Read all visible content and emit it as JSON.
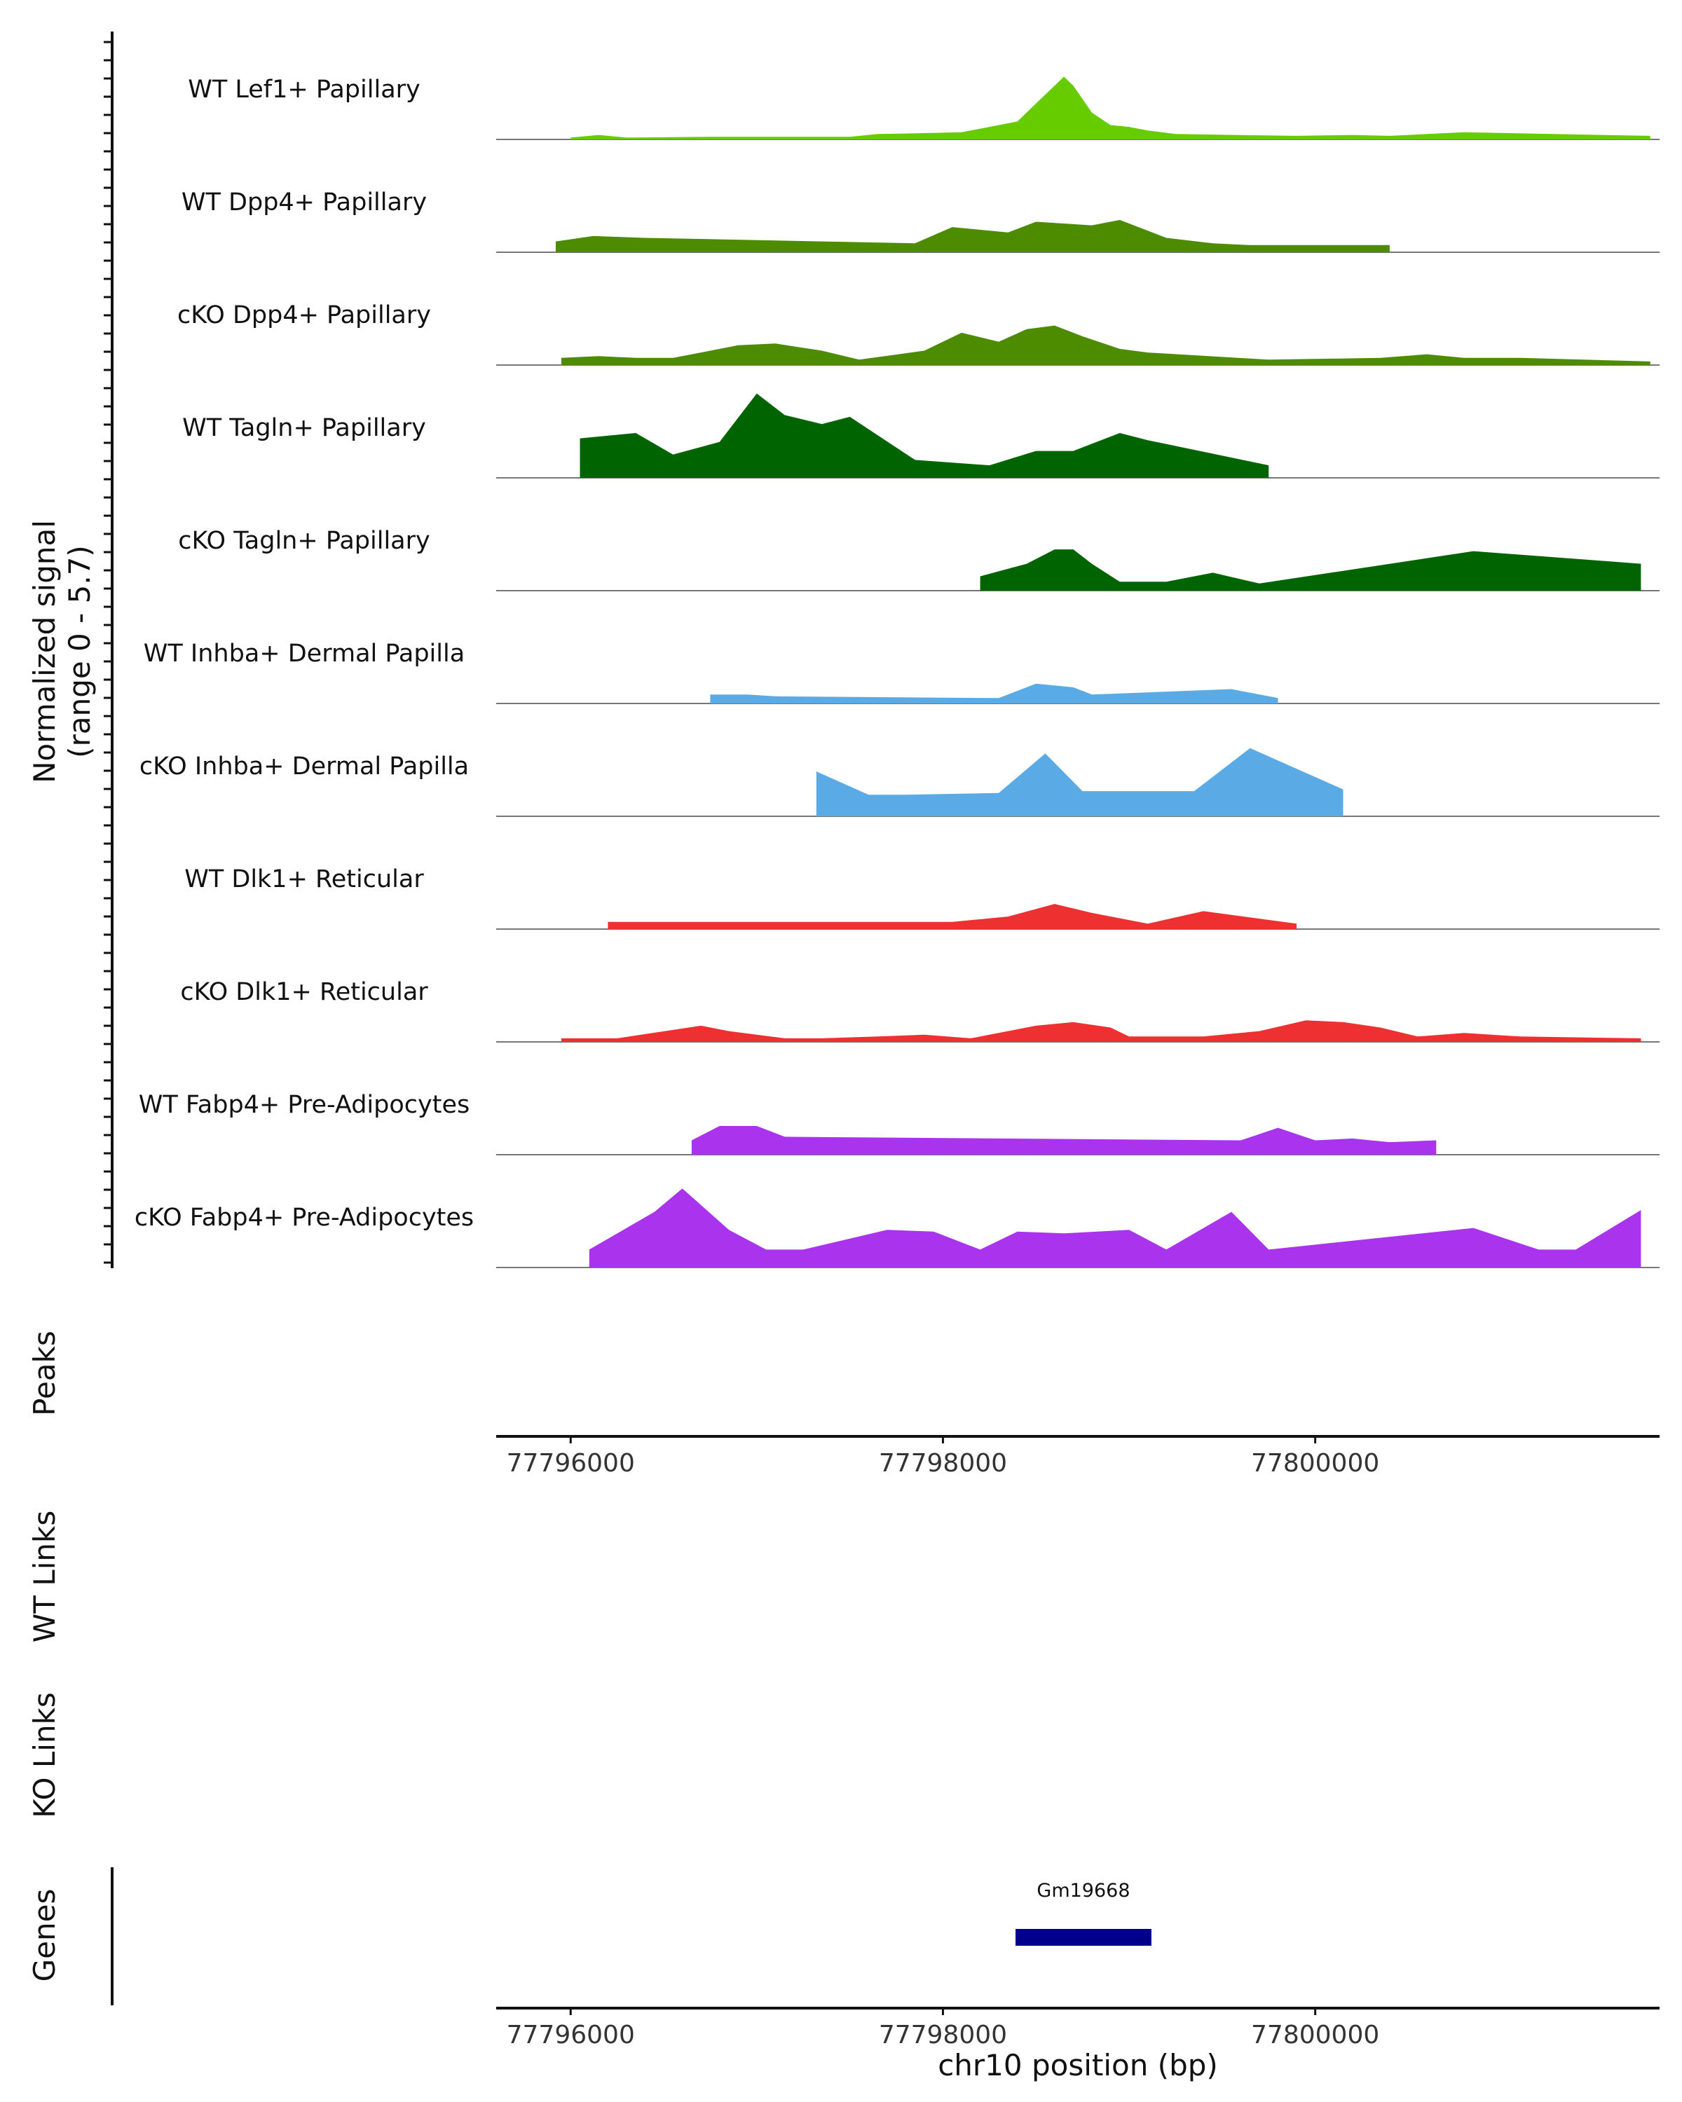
{
  "chart_data": {
    "type": "area",
    "title": "",
    "ylabel": "Normalized signal",
    "ylabel_range": "(range 0 - 5.7)",
    "xlabel": "chr10 position (bp)",
    "xlim": [
      77795600,
      77801850
    ],
    "ylim": [
      0,
      5.7
    ],
    "xticks": [
      77796000,
      77798000,
      77800000
    ],
    "xtick_labels": [
      "77796000",
      "77798000",
      "77800000"
    ],
    "panel_labels": {
      "peaks": "Peaks",
      "wt_links": "WT Links",
      "ko_links": "KO Links",
      "genes": "Genes"
    },
    "genes": [
      {
        "name": "Gm19668",
        "start": 77798390,
        "end": 77799120,
        "color": "#00008B"
      }
    ],
    "tracks": [
      {
        "name": "WT Lef1+ Papillary",
        "color": "#66CC00",
        "values": [
          [
            77796000,
            0.1
          ],
          [
            77796150,
            0.25
          ],
          [
            77796300,
            0.1
          ],
          [
            77796750,
            0.15
          ],
          [
            77797150,
            0.15
          ],
          [
            77797500,
            0.15
          ],
          [
            77797650,
            0.3
          ],
          [
            77797900,
            0.35
          ],
          [
            77798100,
            0.4
          ],
          [
            77798400,
            1.0
          ],
          [
            77798500,
            2.0
          ],
          [
            77798600,
            3.0
          ],
          [
            77798650,
            3.5
          ],
          [
            77798700,
            3.0
          ],
          [
            77798800,
            1.5
          ],
          [
            77798900,
            0.8
          ],
          [
            77799000,
            0.7
          ],
          [
            77799100,
            0.5
          ],
          [
            77799250,
            0.3
          ],
          [
            77799900,
            0.2
          ],
          [
            77800200,
            0.25
          ],
          [
            77800400,
            0.2
          ],
          [
            77800600,
            0.3
          ],
          [
            77800800,
            0.4
          ],
          [
            77801800,
            0.2
          ]
        ]
      },
      {
        "name": "WT Dpp4+ Papillary",
        "color": "#4D8C00",
        "values": [
          [
            77795920,
            0.6
          ],
          [
            77796120,
            0.9
          ],
          [
            77796400,
            0.8
          ],
          [
            77797850,
            0.5
          ],
          [
            77798050,
            1.4
          ],
          [
            77798350,
            1.1
          ],
          [
            77798500,
            1.7
          ],
          [
            77798650,
            1.6
          ],
          [
            77798800,
            1.5
          ],
          [
            77798950,
            1.8
          ],
          [
            77799200,
            0.8
          ],
          [
            77799450,
            0.5
          ],
          [
            77799650,
            0.4
          ],
          [
            77800150,
            0.4
          ],
          [
            77800400,
            0.4
          ]
        ]
      },
      {
        "name": "cKO Dpp4+ Papillary",
        "color": "#4D8C00",
        "values": [
          [
            77795950,
            0.4
          ],
          [
            77796150,
            0.5
          ],
          [
            77796350,
            0.4
          ],
          [
            77796550,
            0.4
          ],
          [
            77796900,
            1.1
          ],
          [
            77797100,
            1.2
          ],
          [
            77797350,
            0.8
          ],
          [
            77797550,
            0.3
          ],
          [
            77797900,
            0.8
          ],
          [
            77798100,
            1.8
          ],
          [
            77798300,
            1.3
          ],
          [
            77798450,
            2.0
          ],
          [
            77798600,
            2.2
          ],
          [
            77798750,
            1.6
          ],
          [
            77798950,
            0.9
          ],
          [
            77799100,
            0.7
          ],
          [
            77799750,
            0.3
          ],
          [
            77800350,
            0.4
          ],
          [
            77800600,
            0.6
          ],
          [
            77800800,
            0.4
          ],
          [
            77801100,
            0.4
          ],
          [
            77801800,
            0.2
          ]
        ]
      },
      {
        "name": "WT Tagln+ Papillary",
        "color": "#006400",
        "values": [
          [
            77796050,
            2.2
          ],
          [
            77796350,
            2.5
          ],
          [
            77796550,
            1.3
          ],
          [
            77796800,
            2.0
          ],
          [
            77797000,
            4.7
          ],
          [
            77797150,
            3.5
          ],
          [
            77797350,
            3.0
          ],
          [
            77797500,
            3.4
          ],
          [
            77797850,
            1.0
          ],
          [
            77798250,
            0.7
          ],
          [
            77798500,
            1.5
          ],
          [
            77798700,
            1.5
          ],
          [
            77798950,
            2.5
          ],
          [
            77799100,
            2.1
          ],
          [
            77799750,
            0.7
          ]
        ]
      },
      {
        "name": "cKO Tagln+ Papillary",
        "color": "#006400",
        "values": [
          [
            77798200,
            0.8
          ],
          [
            77798450,
            1.5
          ],
          [
            77798600,
            2.3
          ],
          [
            77798700,
            2.3
          ],
          [
            77798800,
            1.5
          ],
          [
            77798950,
            0.5
          ],
          [
            77799200,
            0.5
          ],
          [
            77799450,
            1.0
          ],
          [
            77799700,
            0.4
          ],
          [
            77800850,
            2.2
          ],
          [
            77801750,
            1.5
          ]
        ]
      },
      {
        "name": "WT Inhba+ Dermal Papilla",
        "color": "#5AAAE6",
        "values": [
          [
            77796750,
            0.5
          ],
          [
            77796950,
            0.5
          ],
          [
            77797100,
            0.4
          ],
          [
            77798300,
            0.3
          ],
          [
            77798500,
            1.1
          ],
          [
            77798700,
            0.9
          ],
          [
            77798800,
            0.5
          ],
          [
            77799550,
            0.8
          ],
          [
            77799800,
            0.3
          ]
        ]
      },
      {
        "name": "cKO Inhba+ Dermal Papilla",
        "color": "#5AAAE6",
        "values": [
          [
            77797320,
            2.5
          ],
          [
            77797600,
            1.2
          ],
          [
            77797800,
            1.2
          ],
          [
            77798300,
            1.3
          ],
          [
            77798550,
            3.5
          ],
          [
            77798750,
            1.4
          ],
          [
            77799350,
            1.4
          ],
          [
            77799650,
            3.8
          ],
          [
            77800150,
            1.5
          ]
        ]
      },
      {
        "name": "WT Dlk1+ Reticular",
        "color": "#EE3030",
        "values": [
          [
            77796200,
            0.4
          ],
          [
            77797200,
            0.4
          ],
          [
            77797600,
            0.4
          ],
          [
            77798050,
            0.4
          ],
          [
            77798350,
            0.7
          ],
          [
            77798600,
            1.4
          ],
          [
            77798800,
            0.9
          ],
          [
            77799100,
            0.3
          ],
          [
            77799400,
            1.0
          ],
          [
            77799900,
            0.3
          ]
        ]
      },
      {
        "name": "cKO Dlk1+ Reticular",
        "color": "#EE3030",
        "values": [
          [
            77795950,
            0.2
          ],
          [
            77796250,
            0.2
          ],
          [
            77796700,
            0.9
          ],
          [
            77796850,
            0.6
          ],
          [
            77797150,
            0.2
          ],
          [
            77797350,
            0.2
          ],
          [
            77797650,
            0.3
          ],
          [
            77797900,
            0.4
          ],
          [
            77798150,
            0.2
          ],
          [
            77798500,
            0.9
          ],
          [
            77798700,
            1.1
          ],
          [
            77798900,
            0.8
          ],
          [
            77799000,
            0.3
          ],
          [
            77799200,
            0.3
          ],
          [
            77799400,
            0.3
          ],
          [
            77799700,
            0.6
          ],
          [
            77799950,
            1.2
          ],
          [
            77800150,
            1.1
          ],
          [
            77800350,
            0.8
          ],
          [
            77800550,
            0.3
          ],
          [
            77800800,
            0.5
          ],
          [
            77801100,
            0.3
          ],
          [
            77801750,
            0.2
          ]
        ]
      },
      {
        "name": "WT Fabp4+ Pre-Adipocytes",
        "color": "#AA33EE",
        "values": [
          [
            77796650,
            0.8
          ],
          [
            77796800,
            1.6
          ],
          [
            77797000,
            1.6
          ],
          [
            77797150,
            1.0
          ],
          [
            77799600,
            0.8
          ],
          [
            77799800,
            1.5
          ],
          [
            77800000,
            0.8
          ],
          [
            77800200,
            0.9
          ],
          [
            77800400,
            0.7
          ],
          [
            77800650,
            0.8
          ]
        ]
      },
      {
        "name": "cKO Fabp4+ Pre-Adipocytes",
        "color": "#AA33EE",
        "values": [
          [
            77796100,
            1.0
          ],
          [
            77796450,
            3.1
          ],
          [
            77796600,
            4.4
          ],
          [
            77796850,
            2.1
          ],
          [
            77797050,
            1.0
          ],
          [
            77797250,
            1.0
          ],
          [
            77797700,
            2.1
          ],
          [
            77797950,
            2.0
          ],
          [
            77798200,
            1.0
          ],
          [
            77798400,
            2.0
          ],
          [
            77798650,
            1.9
          ],
          [
            77799000,
            2.1
          ],
          [
            77799200,
            1.0
          ],
          [
            77799550,
            3.1
          ],
          [
            77799750,
            1.0
          ],
          [
            77800850,
            2.2
          ],
          [
            77801200,
            1.0
          ],
          [
            77801400,
            1.0
          ],
          [
            77801750,
            3.2
          ]
        ]
      }
    ]
  }
}
